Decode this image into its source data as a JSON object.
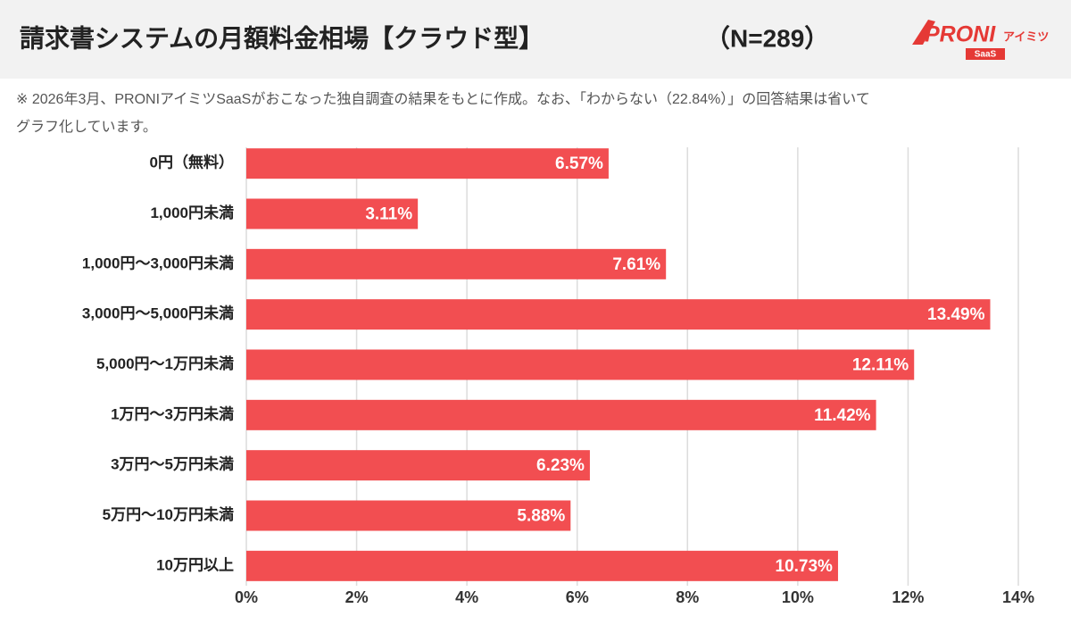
{
  "chart_data": {
    "type": "bar",
    "orientation": "horizontal",
    "title": "請求書システムの月額料金相場【クラウド型】",
    "subtitle": "（N=289）",
    "note": [
      "※ 2026年3月、PRONIアイミツSaaSがおこなった独自調査の結果をもとに作成。なお、「わからない（22.84%）」の回答結果は省いて",
      "グラフ化しています。"
    ],
    "categories": [
      "0円（無料）",
      "1,000円未満",
      "1,000円〜3,000円未満",
      "3,000円〜5,000円未満",
      "5,000円〜1万円未満",
      "1万円〜3万円未満",
      "3万円〜5万円未満",
      "5万円〜10万円未満",
      "10万円以上"
    ],
    "values": [
      6.57,
      3.11,
      7.61,
      13.49,
      12.11,
      11.42,
      6.23,
      5.88,
      10.73
    ],
    "value_labels": [
      "6.57%",
      "3.11%",
      "7.61%",
      "13.49%",
      "12.11%",
      "11.42%",
      "6.23%",
      "5.88%",
      "10.73%"
    ],
    "color": "#f24e51",
    "xlim": [
      0,
      14
    ],
    "xticks": [
      {
        "value": 0,
        "label": "0%"
      },
      {
        "value": 2,
        "label": "2%"
      },
      {
        "value": 4,
        "label": "4%"
      },
      {
        "value": 6,
        "label": "6%"
      },
      {
        "value": 8,
        "label": "8%"
      },
      {
        "value": 10,
        "label": "10%"
      },
      {
        "value": 12,
        "label": "12%"
      },
      {
        "value": 14,
        "label": "14%"
      }
    ],
    "grid": true
  },
  "logo": {
    "brand": "PRONI",
    "name": "アイミツ",
    "tag": "SaaS"
  }
}
